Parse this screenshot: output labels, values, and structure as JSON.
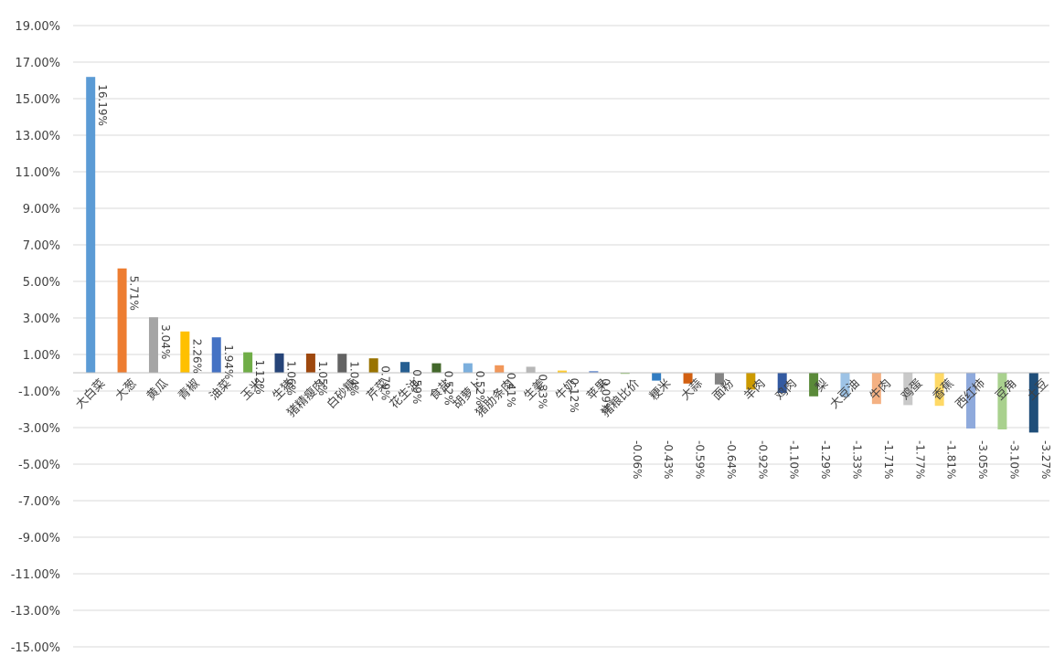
{
  "chart_data": {
    "type": "bar",
    "title": "",
    "xlabel": "",
    "ylabel": "",
    "ylim": [
      -15,
      19
    ],
    "y_tick_step": 2,
    "y_tick_labels": [
      "19.00%",
      "17.00%",
      "15.00%",
      "13.00%",
      "11.00%",
      "9.00%",
      "7.00%",
      "5.00%",
      "3.00%",
      "1.00%",
      "-1.00%",
      "-3.00%",
      "-5.00%",
      "-7.00%",
      "-9.00%",
      "-11.00%",
      "-13.00%",
      "-15.00%"
    ],
    "grid": true,
    "legend": "none",
    "categories": [
      "大白菜",
      "大葱",
      "黄瓜",
      "青椒",
      "油菜",
      "玉米",
      "生猪",
      "猪精瘦肉",
      "白砂糖",
      "芹菜",
      "花生油",
      "食盐",
      "胡萝卜",
      "猪肋条肉",
      "生姜",
      "牛奶",
      "苹果",
      "猪粮比价",
      "粳米",
      "大蒜",
      "面粉",
      "羊肉",
      "鸡肉",
      "梨",
      "大豆油",
      "牛肉",
      "鸡蛋",
      "香蕉",
      "西红柿",
      "豆角",
      "土豆"
    ],
    "values": [
      16.19,
      5.71,
      3.04,
      2.26,
      1.94,
      1.12,
      1.06,
      1.05,
      1.04,
      0.79,
      0.59,
      0.52,
      0.52,
      0.41,
      0.33,
      0.12,
      0.09,
      -0.06,
      -0.43,
      -0.59,
      -0.64,
      -0.92,
      -1.1,
      -1.29,
      -1.33,
      -1.71,
      -1.77,
      -1.81,
      -3.05,
      -3.1,
      -3.27
    ],
    "value_labels": [
      "16.19%",
      "5.71%",
      "3.04%",
      "2.26%",
      "1.94%",
      "1.12%",
      "1.06%",
      "1.05%",
      "1.04%",
      "0.79%",
      "0.59%",
      "0.52%",
      "0.52%",
      "0.41%",
      "0.33%",
      "0.12%",
      "0.09%",
      "-0.06%",
      "-0.43%",
      "-0.59%",
      "-0.64%",
      "-0.92%",
      "-1.10%",
      "-1.29%",
      "-1.33%",
      "-1.71%",
      "-1.77%",
      "-1.81%",
      "-3.05%",
      "-3.10%",
      "-3.27%"
    ],
    "colors": [
      "#5b9bd5",
      "#ed7d31",
      "#a5a5a5",
      "#ffc000",
      "#4472c4",
      "#70ad47",
      "#264478",
      "#9e480e",
      "#636363",
      "#997300",
      "#255e91",
      "#43682b",
      "#7cafdd",
      "#f1975a",
      "#b7b7b7",
      "#ffcd33",
      "#698ed0",
      "#8cc168",
      "#327dc2",
      "#d26012",
      "#848484",
      "#cc9a00",
      "#335aa1",
      "#5a8a39",
      "#9dc3e6",
      "#f4b183",
      "#c9c9c9",
      "#ffd966",
      "#8faadc",
      "#a9d18e",
      "#1f4e79"
    ]
  }
}
